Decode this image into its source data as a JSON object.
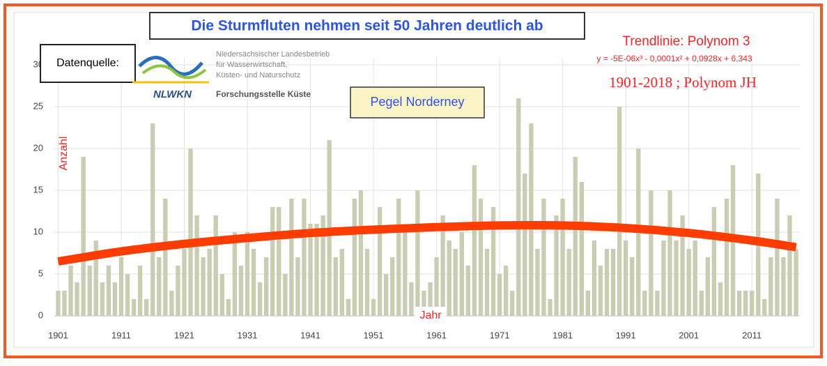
{
  "chart_data": {
    "type": "bar",
    "title": "Die Sturmfluten nehmen seit 50 Jahren deutlich ab",
    "source_label": "Datenquelle:",
    "source_org": [
      "Niedersächsischer Landesbetrieb",
      "für Wasserwirtschaft,",
      "Küsten- und Naturschutz"
    ],
    "source_logo": "NLWKN",
    "source_unit": "Forschungsstelle Küste",
    "station": "Pegel Norderney",
    "trend_title": "Trendlinie: Polynom 3",
    "trend_equation": "y = -5E-06x³ - 0,0001x² + 0,0928x + 6,343",
    "trend_note": "1901-2018 ; Polynom JH",
    "y_label": "Anzahl",
    "x_label": "Jahr",
    "x": [
      1901,
      1902,
      1903,
      1904,
      1905,
      1906,
      1907,
      1908,
      1909,
      1910,
      1911,
      1912,
      1913,
      1914,
      1915,
      1916,
      1917,
      1918,
      1919,
      1920,
      1921,
      1922,
      1923,
      1924,
      1925,
      1926,
      1927,
      1928,
      1929,
      1930,
      1931,
      1932,
      1933,
      1934,
      1935,
      1936,
      1937,
      1938,
      1939,
      1940,
      1941,
      1942,
      1943,
      1944,
      1945,
      1946,
      1947,
      1948,
      1949,
      1950,
      1951,
      1952,
      1953,
      1954,
      1955,
      1956,
      1957,
      1958,
      1959,
      1960,
      1961,
      1962,
      1963,
      1964,
      1965,
      1966,
      1967,
      1968,
      1969,
      1970,
      1971,
      1972,
      1973,
      1974,
      1975,
      1976,
      1977,
      1978,
      1979,
      1980,
      1981,
      1982,
      1983,
      1984,
      1985,
      1986,
      1987,
      1988,
      1989,
      1990,
      1991,
      1992,
      1993,
      1994,
      1995,
      1996,
      1997,
      1998,
      1999,
      2000,
      2001,
      2002,
      2003,
      2004,
      2005,
      2006,
      2007,
      2008,
      2009,
      2010,
      2011,
      2012,
      2013,
      2014,
      2015,
      2016,
      2017,
      2018
    ],
    "values": [
      3,
      3,
      6,
      4,
      19,
      6,
      9,
      4,
      6,
      4,
      7,
      5,
      2,
      6,
      2,
      23,
      7,
      14,
      3,
      6,
      8,
      20,
      12,
      7,
      8,
      12,
      5,
      2,
      10,
      6,
      10,
      8,
      4,
      7,
      13,
      13,
      5,
      14,
      7,
      14,
      11,
      11,
      12,
      21,
      7,
      8,
      2,
      14,
      15,
      8,
      2,
      13,
      5,
      7,
      14,
      10,
      4,
      15,
      3,
      4,
      7,
      12,
      9,
      8,
      10,
      6,
      18,
      14,
      8,
      13,
      5,
      6,
      3,
      26,
      17,
      23,
      8,
      14,
      2,
      12,
      14,
      8,
      19,
      16,
      3,
      9,
      6,
      8,
      8,
      25,
      9,
      7,
      20,
      3,
      15,
      3,
      9,
      15,
      9,
      12,
      8,
      9,
      3,
      7,
      13,
      4,
      14,
      18,
      3,
      3,
      3,
      17,
      2,
      7,
      14,
      7,
      12,
      8
    ],
    "color": "#c9ceb2",
    "trendline": {
      "x": [
        1901,
        1911,
        1921,
        1931,
        1941,
        1951,
        1961,
        1971,
        1981,
        1991,
        2001,
        2011,
        2018
      ],
      "values": [
        6.5,
        7.7,
        8.6,
        9.3,
        9.9,
        10.3,
        10.6,
        10.8,
        10.8,
        10.5,
        9.9,
        9.0,
        8.2
      ],
      "color": "#ff3c00"
    },
    "xlim": [
      1900.4,
      2018.6
    ],
    "xticks": [
      1901,
      1911,
      1921,
      1931,
      1941,
      1951,
      1961,
      1971,
      1981,
      1991,
      2001,
      2011
    ],
    "ylim": [
      0,
      30
    ],
    "yticks": [
      0,
      5,
      10,
      15,
      20,
      25,
      30
    ],
    "grid": true
  }
}
